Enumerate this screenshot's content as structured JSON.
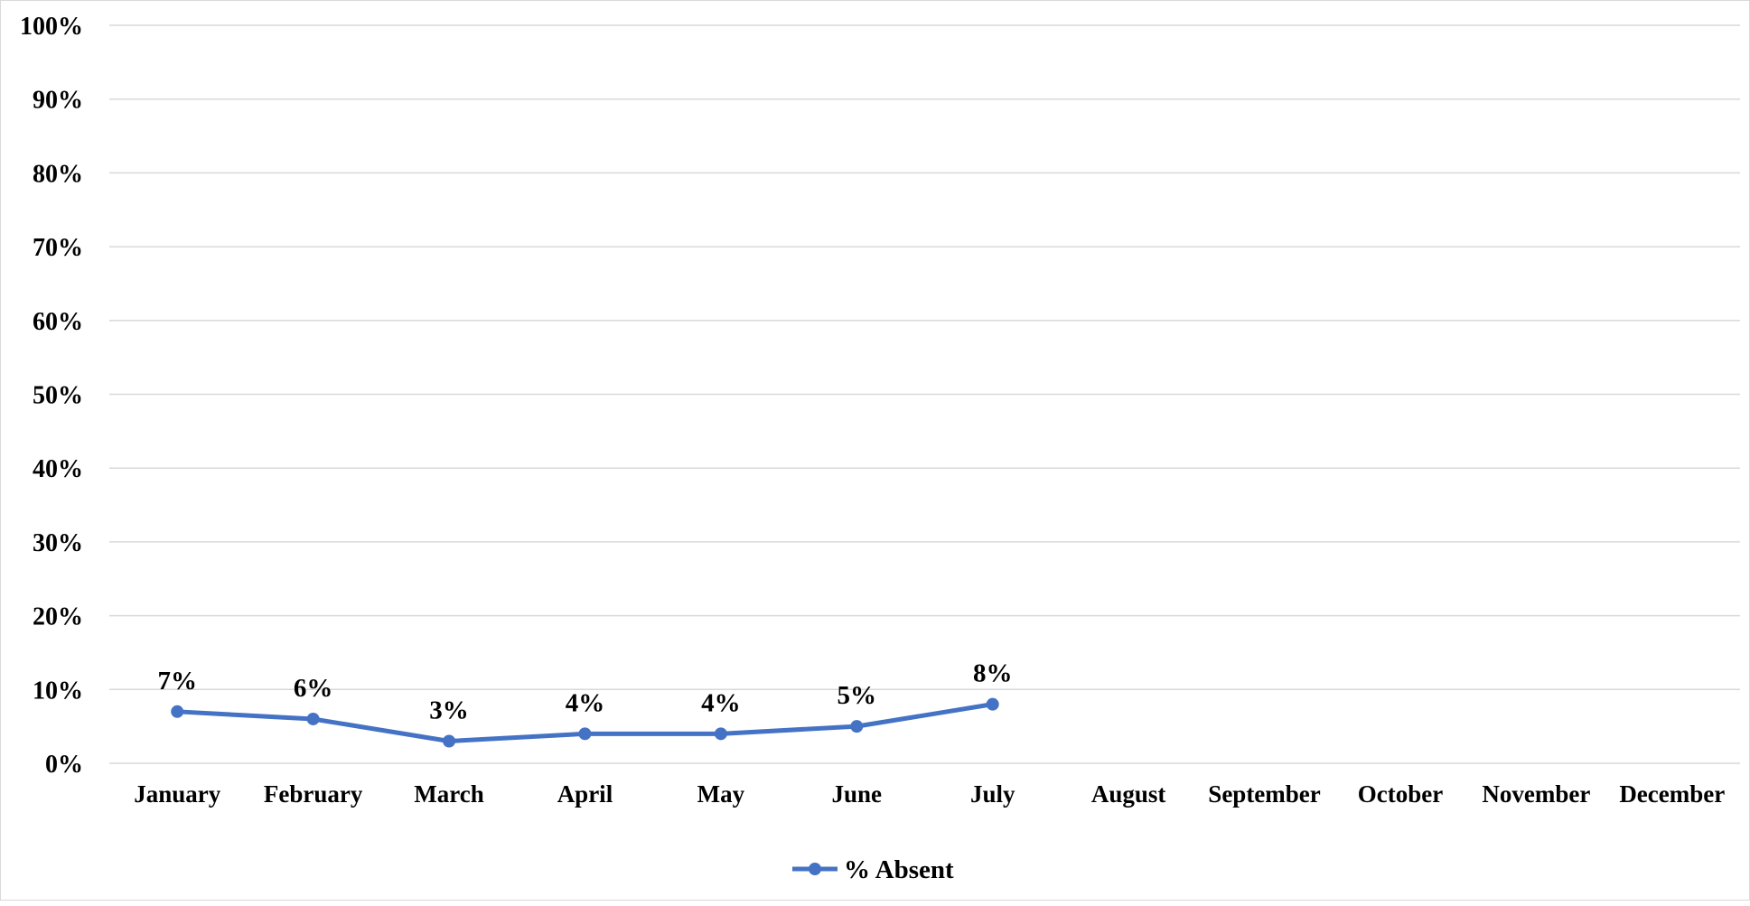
{
  "chart_data": {
    "type": "line",
    "categories": [
      "January",
      "February",
      "March",
      "April",
      "May",
      "June",
      "July",
      "August",
      "September",
      "October",
      "November",
      "December"
    ],
    "series": [
      {
        "name": "% Absent",
        "values": [
          0.07,
          0.06,
          0.03,
          0.04,
          0.04,
          0.05,
          0.08,
          null,
          null,
          null,
          null,
          null
        ],
        "data_labels": [
          "7%",
          "6%",
          "3%",
          "4%",
          "4%",
          "5%",
          "8%",
          null,
          null,
          null,
          null,
          null
        ],
        "color": "#4472C4"
      }
    ],
    "y_ticks": [
      "0%",
      "10%",
      "20%",
      "30%",
      "40%",
      "50%",
      "60%",
      "70%",
      "80%",
      "90%",
      "100%"
    ],
    "ylim": [
      0,
      1
    ],
    "grid": true,
    "legend_position": "bottom"
  },
  "colors": {
    "series": "#4472C4",
    "gridline": "#d9d9d9",
    "text": "#000000"
  }
}
